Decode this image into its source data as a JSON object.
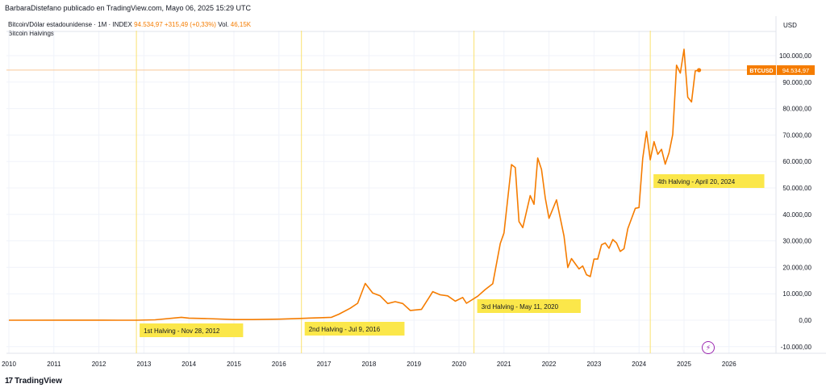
{
  "header": {
    "credit": "BarbaraDistefano publicado en TradingView.com, Mayo 06, 2025 15:29 UTC",
    "symbol_desc": "Bitcoin/Dólar estadounidense · 1M · INDEX",
    "last": "94.534,97",
    "change": "+315,49 (+0,33%)",
    "vol_label": "Vol.",
    "vol_value": "46,15K",
    "indicator": "Bitcoin Halvings",
    "currency": "USD"
  },
  "footer": {
    "logo_mark": "17",
    "logo_text": "TradingView"
  },
  "price_badge": {
    "symbol": "BTCUSD",
    "value": "94.534,97"
  },
  "colors": {
    "line": "#f57c00",
    "halving_line": "#fbe270",
    "halving_label_bg": "#fbe74a",
    "grid": "#f0f3fa"
  },
  "chart_data": {
    "type": "line",
    "title": "",
    "xlabel": "",
    "ylabel": "",
    "x_axis": "date",
    "ylim": [
      -10000,
      110000
    ],
    "grid": true,
    "yticks": [
      -10000,
      0,
      10000,
      20000,
      30000,
      40000,
      50000,
      60000,
      70000,
      80000,
      90000,
      100000
    ],
    "ytick_labels": [
      "-10.000,00",
      "0,00",
      "10.000,00",
      "20.000,00",
      "30.000,00",
      "40.000,00",
      "50.000,00",
      "60.000,00",
      "70.000,00",
      "80.000,00",
      "90.000,00",
      "100.000,00"
    ],
    "xticks": [
      "2010",
      "2011",
      "2012",
      "2013",
      "2014",
      "2015",
      "2016",
      "2017",
      "2018",
      "2019",
      "2020",
      "2021",
      "2022",
      "2023",
      "2024",
      "2025",
      "2026"
    ],
    "series": [
      {
        "name": "BTCUSD",
        "points": [
          [
            "2010-01",
            0
          ],
          [
            "2011-06",
            20
          ],
          [
            "2012-06",
            7
          ],
          [
            "2012-11",
            12
          ],
          [
            "2013-04",
            140
          ],
          [
            "2013-11",
            1100
          ],
          [
            "2014-01",
            800
          ],
          [
            "2014-06",
            600
          ],
          [
            "2015-01",
            250
          ],
          [
            "2015-06",
            250
          ],
          [
            "2016-01",
            400
          ],
          [
            "2016-06",
            650
          ],
          [
            "2016-12",
            950
          ],
          [
            "2017-03",
            1100
          ],
          [
            "2017-05",
            2300
          ],
          [
            "2017-08",
            4500
          ],
          [
            "2017-10",
            6400
          ],
          [
            "2017-12",
            13900
          ],
          [
            "2018-02",
            10300
          ],
          [
            "2018-04",
            9200
          ],
          [
            "2018-06",
            6300
          ],
          [
            "2018-08",
            7000
          ],
          [
            "2018-10",
            6300
          ],
          [
            "2018-12",
            3700
          ],
          [
            "2019-03",
            4100
          ],
          [
            "2019-05",
            8500
          ],
          [
            "2019-06",
            10800
          ],
          [
            "2019-08",
            9600
          ],
          [
            "2019-10",
            9200
          ],
          [
            "2019-12",
            7200
          ],
          [
            "2020-02",
            8600
          ],
          [
            "2020-03",
            6400
          ],
          [
            "2020-06",
            9100
          ],
          [
            "2020-08",
            11600
          ],
          [
            "2020-10",
            13800
          ],
          [
            "2020-12",
            29000
          ],
          [
            "2021-01",
            33000
          ],
          [
            "2021-03",
            58800
          ],
          [
            "2021-04",
            57700
          ],
          [
            "2021-05",
            37300
          ],
          [
            "2021-06",
            35000
          ],
          [
            "2021-08",
            47100
          ],
          [
            "2021-09",
            43800
          ],
          [
            "2021-10",
            61300
          ],
          [
            "2021-11",
            57000
          ],
          [
            "2021-12",
            46200
          ],
          [
            "2022-01",
            38500
          ],
          [
            "2022-03",
            45500
          ],
          [
            "2022-05",
            31800
          ],
          [
            "2022-06",
            19900
          ],
          [
            "2022-07",
            23300
          ],
          [
            "2022-09",
            19400
          ],
          [
            "2022-10",
            20500
          ],
          [
            "2022-11",
            17200
          ],
          [
            "2022-12",
            16500
          ],
          [
            "2023-01",
            23100
          ],
          [
            "2023-02",
            23100
          ],
          [
            "2023-03",
            28500
          ],
          [
            "2023-04",
            29200
          ],
          [
            "2023-05",
            27200
          ],
          [
            "2023-06",
            30500
          ],
          [
            "2023-07",
            29200
          ],
          [
            "2023-08",
            26000
          ],
          [
            "2023-09",
            27000
          ],
          [
            "2023-10",
            34600
          ],
          [
            "2023-12",
            42300
          ],
          [
            "2024-01",
            42600
          ],
          [
            "2024-02",
            61200
          ],
          [
            "2024-03",
            71300
          ],
          [
            "2024-04",
            60600
          ],
          [
            "2024-05",
            67500
          ],
          [
            "2024-06",
            62700
          ],
          [
            "2024-07",
            64600
          ],
          [
            "2024-08",
            59000
          ],
          [
            "2024-09",
            63300
          ],
          [
            "2024-10",
            70200
          ],
          [
            "2024-11",
            96400
          ],
          [
            "2024-12",
            93400
          ],
          [
            "2025-01",
            102400
          ],
          [
            "2025-02",
            84300
          ],
          [
            "2025-03",
            82500
          ],
          [
            "2025-04",
            94200
          ],
          [
            "2025-05",
            94534.97
          ]
        ]
      }
    ],
    "annotations": [
      {
        "date": "2012-11",
        "label": "1st Halving - Nov 28, 2012"
      },
      {
        "date": "2016-07",
        "label": "2nd Halving - Jul 9, 2016"
      },
      {
        "date": "2020-05",
        "label": "3rd Halving - May 11, 2020"
      },
      {
        "date": "2024-04",
        "label": "4th Halving - April 20, 2024"
      }
    ]
  }
}
